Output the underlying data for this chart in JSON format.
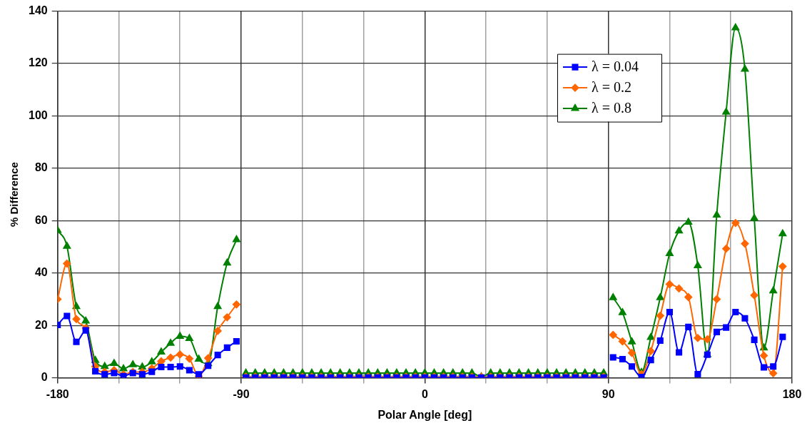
{
  "chart_data": {
    "type": "line",
    "xlabel": "Polar Angle [deg]",
    "ylabel": "% Difference",
    "x": [
      -180,
      -175.4,
      -170.8,
      -166.2,
      -161.5,
      -156.9,
      -152.3,
      -147.7,
      -143.1,
      -138.5,
      -133.8,
      -129.2,
      -124.6,
      -120,
      -115.4,
      -110.8,
      -106.2,
      -101.5,
      -96.9,
      -92.3,
      -90,
      -87.7,
      -83.1,
      -78.5,
      -73.8,
      -69.2,
      -64.6,
      -60,
      -55.4,
      -50.8,
      -46.2,
      -41.5,
      -36.9,
      -32.3,
      -27.7,
      -23.1,
      -18.5,
      -13.8,
      -9.2,
      -4.6,
      0,
      4.6,
      9.2,
      13.8,
      18.5,
      23.1,
      27.7,
      32.3,
      36.9,
      41.5,
      46.2,
      50.8,
      55.4,
      60,
      64.6,
      69.2,
      73.8,
      78.5,
      83.1,
      87.7,
      90,
      92.3,
      96.9,
      101.5,
      106.2,
      110.8,
      115.4,
      120,
      124.6,
      129.2,
      133.8,
      138.5,
      143.1,
      147.7,
      152.3,
      156.9,
      161.5,
      166.2,
      170.8,
      175.4
    ],
    "series": [
      {
        "name": "λ = 0.04",
        "color": "#0000ff",
        "marker": "square",
        "values": [
          20.2,
          23.6,
          13.7,
          18.1,
          2.5,
          1.3,
          1.8,
          0.6,
          1.8,
          1.3,
          2.3,
          4.1,
          4.1,
          4.3,
          2.9,
          1.3,
          4.6,
          8.7,
          11.5,
          13.9,
          null,
          0.1,
          0.1,
          0.1,
          0.1,
          0.1,
          0.1,
          0.1,
          0.1,
          0.1,
          0.1,
          0.1,
          0.1,
          0.1,
          0.1,
          0.1,
          0.1,
          0.1,
          0.1,
          0.1,
          0.1,
          0.1,
          0.1,
          0.1,
          0.1,
          0.1,
          0.1,
          0.1,
          0.1,
          0.1,
          0.1,
          0.1,
          0.1,
          0.1,
          0.1,
          0.1,
          0.1,
          0.1,
          0.1,
          0.1,
          null,
          7.8,
          7.1,
          4.3,
          0.3,
          6.8,
          14.2,
          25.1,
          9.7,
          19.4,
          1.4,
          8.8,
          17.5,
          19.2,
          25.1,
          22.7,
          14.5,
          4.0,
          4.3,
          15.6
        ]
      },
      {
        "name": "λ = 0.2",
        "color": "#ff6600",
        "marker": "diamond",
        "values": [
          30.0,
          43.6,
          22.4,
          19.0,
          4.3,
          2.2,
          2.9,
          1.3,
          2.2,
          2.2,
          3.6,
          6.3,
          7.7,
          8.9,
          7.3,
          0.6,
          7.5,
          17.9,
          23.1,
          28.0,
          null,
          0.4,
          0.4,
          0.4,
          0.4,
          0.4,
          0.4,
          0.4,
          0.4,
          0.4,
          0.4,
          0.4,
          0.4,
          0.4,
          0.4,
          0.4,
          0.4,
          0.4,
          0.4,
          0.4,
          0.4,
          0.4,
          0.4,
          0.4,
          0.4,
          0.4,
          0.4,
          0.4,
          0.4,
          0.4,
          0.4,
          0.4,
          0.4,
          0.4,
          0.4,
          0.4,
          0.4,
          0.4,
          0.4,
          0.4,
          null,
          16.4,
          13.9,
          9.5,
          1.4,
          10.2,
          23.7,
          35.7,
          34.1,
          30.8,
          15.2,
          14.7,
          30.0,
          49.3,
          59.1,
          51.2,
          31.5,
          8.5,
          1.7,
          42.5
        ]
      },
      {
        "name": "λ = 0.8",
        "color": "#008000",
        "marker": "triangle",
        "values": [
          56.3,
          50.2,
          27.2,
          21.7,
          6.6,
          4.3,
          5.5,
          3.4,
          5.0,
          4.1,
          6.1,
          9.8,
          13.2,
          15.8,
          15.0,
          7.1,
          5.4,
          27.2,
          43.8,
          52.7,
          null,
          1.8,
          1.8,
          1.8,
          1.8,
          1.8,
          1.8,
          1.8,
          1.8,
          1.8,
          1.8,
          1.8,
          1.8,
          1.8,
          1.8,
          1.8,
          1.8,
          1.8,
          1.8,
          1.8,
          1.8,
          1.8,
          1.8,
          1.8,
          1.8,
          1.8,
          0.4,
          1.8,
          1.8,
          1.8,
          1.8,
          1.8,
          1.8,
          1.8,
          1.8,
          1.8,
          1.8,
          1.8,
          1.8,
          1.8,
          null,
          30.6,
          24.9,
          13.7,
          2.1,
          15.4,
          30.6,
          47.4,
          56.1,
          59.4,
          42.8,
          8.8,
          62.1,
          101.4,
          133.6,
          117.8,
          60.9,
          11.4,
          33.2,
          55.0
        ]
      }
    ],
    "xlim": [
      -180,
      180
    ],
    "xticks": [
      -180,
      {
        "value": -150,
        "label": null
      },
      {
        "value": -120,
        "label": null
      },
      -90,
      {
        "value": -60,
        "label": null
      },
      {
        "value": -30,
        "label": null
      },
      0,
      {
        "value": 30,
        "label": null
      },
      {
        "value": 60,
        "label": null
      },
      90,
      {
        "value": 120,
        "label": null
      },
      {
        "value": 150,
        "label": null
      },
      180
    ],
    "ylim": [
      0,
      140
    ],
    "yticks": [
      0,
      20,
      40,
      60,
      80,
      100,
      120,
      140
    ],
    "grid": true,
    "legend": "top right",
    "line_style": "solid"
  }
}
